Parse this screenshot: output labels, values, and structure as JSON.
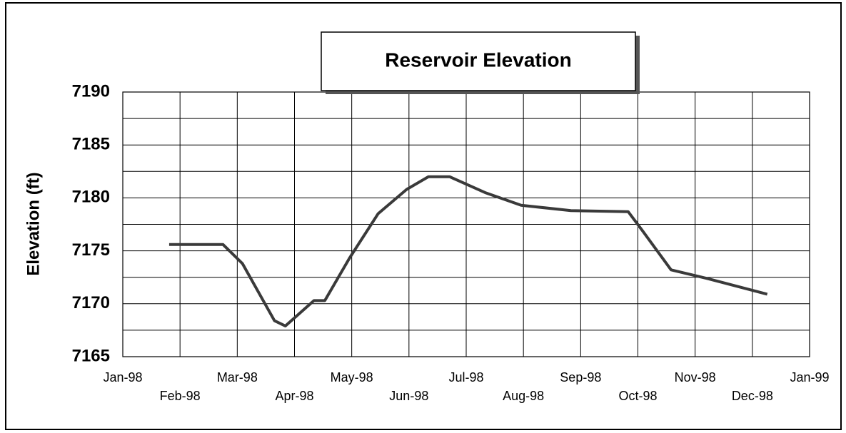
{
  "chart_data": {
    "type": "line",
    "title": "Reservoir Elevation",
    "y_label": "Elevation (ft)",
    "x": [
      0.81,
      1.75,
      2.09,
      2.65,
      2.84,
      3.34,
      3.53,
      3.96,
      4.46,
      4.96,
      5.34,
      5.71,
      6.33,
      6.96,
      7.83,
      8.83,
      9.08,
      9.58,
      10.2,
      11.26
    ],
    "series": [
      {
        "name": "Elevation",
        "color": "#3a3a3a",
        "values": [
          7175.6,
          7175.6,
          7173.8,
          7168.4,
          7167.9,
          7170.3,
          7170.3,
          7174.3,
          7178.5,
          7180.8,
          7182.0,
          7182.0,
          7180.5,
          7179.3,
          7178.8,
          7178.7,
          7176.9,
          7173.2,
          7172.4,
          7170.9
        ]
      }
    ],
    "xlim": [
      0,
      12
    ],
    "xticks": [
      {
        "value": 0,
        "label": "Jan-98"
      },
      {
        "value": 1,
        "label": "Feb-98"
      },
      {
        "value": 2,
        "label": "Mar-98"
      },
      {
        "value": 3,
        "label": "Apr-98"
      },
      {
        "value": 4,
        "label": "May-98"
      },
      {
        "value": 5,
        "label": "Jun-98"
      },
      {
        "value": 6,
        "label": "Jul-98"
      },
      {
        "value": 7,
        "label": "Aug-98"
      },
      {
        "value": 8,
        "label": "Sep-98"
      },
      {
        "value": 9,
        "label": "Oct-98"
      },
      {
        "value": 10,
        "label": "Nov-98"
      },
      {
        "value": 11,
        "label": "Dec-98"
      },
      {
        "value": 12,
        "label": "Jan-99"
      }
    ],
    "ylim": [
      7165,
      7190
    ],
    "yticks": [
      7165,
      7170,
      7175,
      7180,
      7185,
      7190
    ],
    "minor_yticks": [
      7167.5,
      7172.5,
      7177.5,
      7182.5,
      7187.5
    ],
    "grid": true
  }
}
